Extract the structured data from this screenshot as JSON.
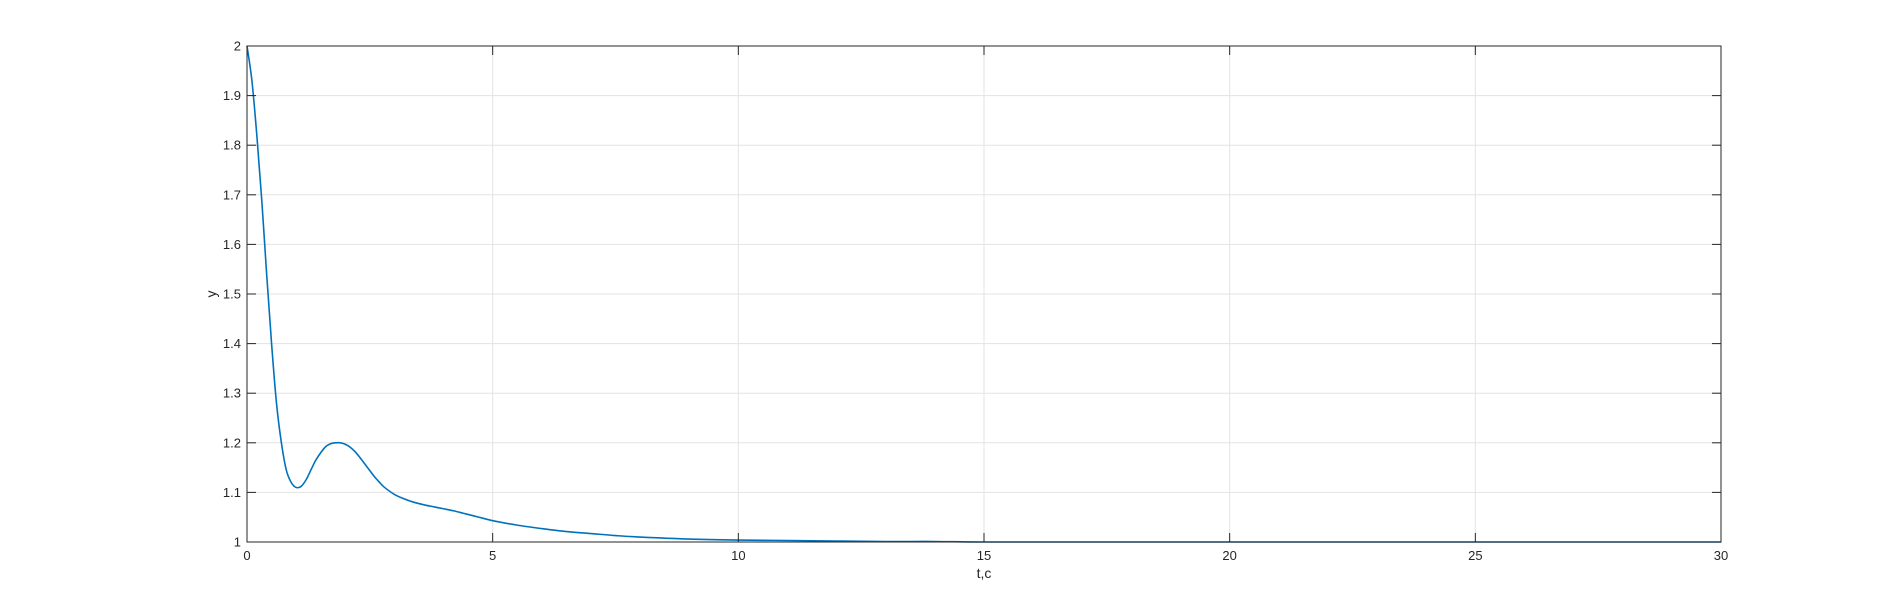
{
  "chart_data": {
    "type": "line",
    "title": "",
    "xlabel": "t,c",
    "ylabel": "y",
    "xlim": [
      0,
      30
    ],
    "ylim": [
      1,
      2
    ],
    "xticks": [
      0,
      5,
      10,
      15,
      20,
      25,
      30
    ],
    "yticks": [
      1,
      1.1,
      1.2,
      1.3,
      1.4,
      1.5,
      1.6,
      1.7,
      1.8,
      1.9,
      2
    ],
    "xtick_labels": [
      "0",
      "5",
      "10",
      "15",
      "20",
      "25",
      "30"
    ],
    "ytick_labels": [
      "1",
      "1.1",
      "1.2",
      "1.3",
      "1.4",
      "1.5",
      "1.6",
      "1.7",
      "1.8",
      "1.9",
      "2"
    ],
    "grid": true,
    "box": true,
    "colors": {
      "line": "#0072BD",
      "grid": "#e3e3e3",
      "axes": "#262626"
    },
    "series": [
      {
        "x": [
          0,
          0.1,
          0.2,
          0.3,
          0.4,
          0.5,
          0.6,
          0.7,
          0.8,
          0.9,
          1.0,
          1.1,
          1.2,
          1.3,
          1.4,
          1.5,
          1.6,
          1.7,
          1.8,
          1.9,
          2.0,
          2.1,
          2.2,
          2.3,
          2.4,
          2.5,
          2.6,
          2.7,
          2.8,
          3.0,
          3.2,
          3.4,
          3.6,
          3.8,
          4.0,
          4.2,
          4.4,
          4.6,
          4.8,
          5.0,
          5.5,
          6.0,
          6.5,
          7.0,
          7.5,
          8.0,
          9.0,
          10.0,
          11.0,
          12.0,
          13.0,
          14.0,
          15.0,
          17.0,
          20.0,
          25.0,
          30.0
        ],
        "values": [
          2.0,
          1.93,
          1.82,
          1.69,
          1.54,
          1.4,
          1.28,
          1.2,
          1.145,
          1.12,
          1.11,
          1.112,
          1.125,
          1.145,
          1.165,
          1.18,
          1.192,
          1.198,
          1.2,
          1.2,
          1.197,
          1.191,
          1.182,
          1.17,
          1.157,
          1.144,
          1.131,
          1.12,
          1.11,
          1.096,
          1.087,
          1.08,
          1.075,
          1.071,
          1.067,
          1.063,
          1.058,
          1.053,
          1.048,
          1.043,
          1.034,
          1.027,
          1.021,
          1.017,
          1.013,
          1.01,
          1.006,
          1.004,
          1.003,
          1.002,
          1.001,
          1.001,
          1.0,
          1.0,
          1.0,
          1.0,
          1.0
        ]
      }
    ]
  }
}
